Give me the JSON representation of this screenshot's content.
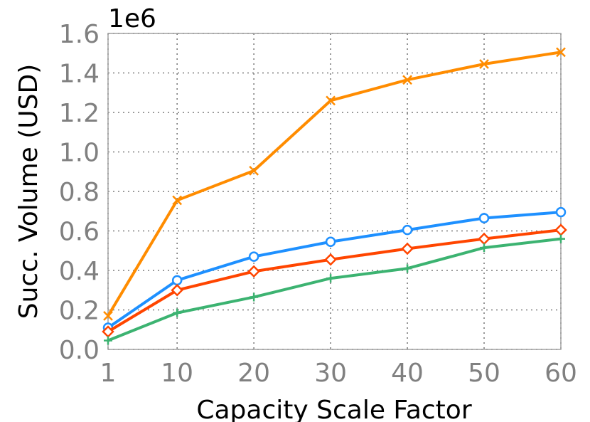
{
  "chart_data": {
    "type": "line",
    "xlabel": "Capacity Scale Factor",
    "ylabel": "Succ. Volume (USD)",
    "y_scale_label": "1e6",
    "x": [
      1,
      10,
      20,
      30,
      40,
      50,
      60
    ],
    "x_ticks": [
      "1",
      "10",
      "20",
      "30",
      "40",
      "50",
      "60"
    ],
    "y_ticks": [
      "0.0",
      "0.2",
      "0.4",
      "0.6",
      "0.8",
      "1.0",
      "1.2",
      "1.4",
      "1.6"
    ],
    "xlim": [
      1,
      60
    ],
    "ylim": [
      0,
      1.6
    ],
    "grid": true,
    "series": [
      {
        "color": "#ff8c00",
        "marker": "x",
        "values": [
          0.17,
          0.755,
          0.905,
          1.26,
          1.365,
          1.445,
          1.505
        ]
      },
      {
        "color": "#1e90ff",
        "marker": "circle",
        "values": [
          0.11,
          0.35,
          0.47,
          0.545,
          0.605,
          0.665,
          0.695
        ]
      },
      {
        "color": "#ff4500",
        "marker": "diamond",
        "values": [
          0.09,
          0.3,
          0.395,
          0.455,
          0.51,
          0.56,
          0.605
        ]
      },
      {
        "color": "#3cb371",
        "marker": "plus",
        "values": [
          0.045,
          0.185,
          0.265,
          0.36,
          0.41,
          0.515,
          0.56
        ]
      }
    ]
  }
}
